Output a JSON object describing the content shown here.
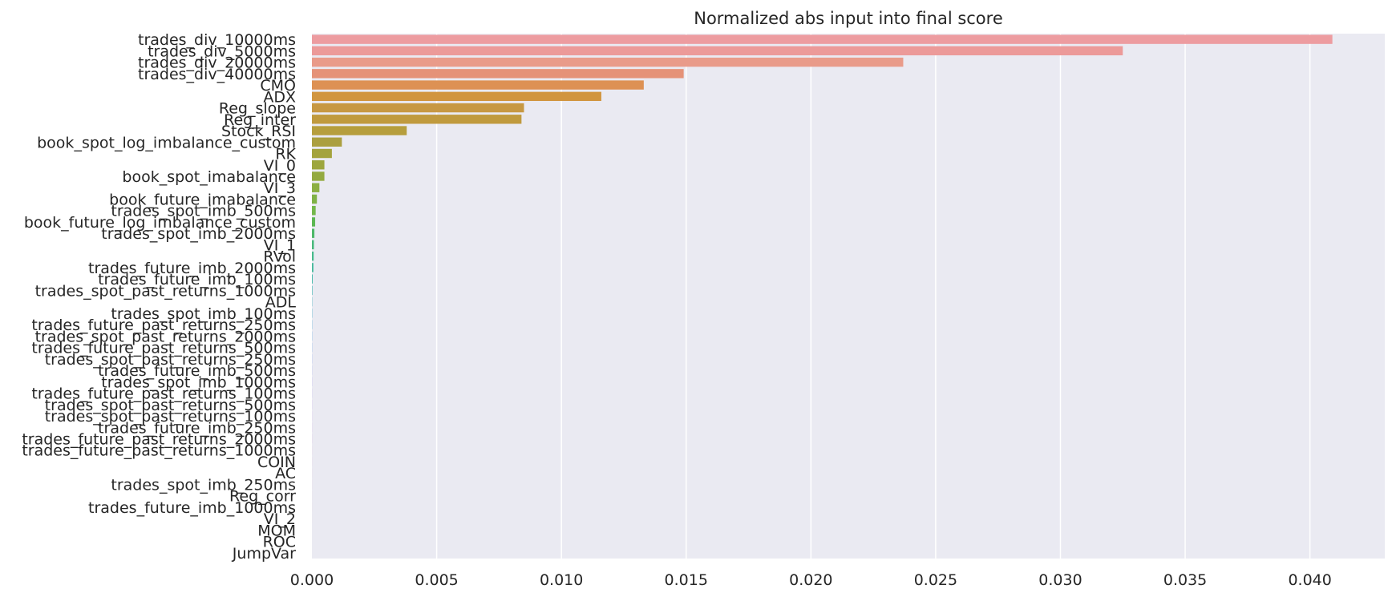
{
  "chart_data": {
    "type": "bar",
    "orientation": "horizontal",
    "title": "Normalized abs input into final score",
    "xlabel": "",
    "ylabel": "",
    "xlim": [
      0,
      0.043
    ],
    "xticks": [
      "0.000",
      "0.005",
      "0.010",
      "0.015",
      "0.020",
      "0.025",
      "0.030",
      "0.035",
      "0.040"
    ],
    "grid": true,
    "legend": "none",
    "categories": [
      "trades_div_10000ms",
      "trades_div_5000ms",
      "trades_div_20000ms",
      "trades_div_40000ms",
      "CMO",
      "ADX",
      "Reg_slope",
      "Reg_inter",
      "Stock_RSI",
      "book_spot_log_imbalance_custom",
      "RK",
      "VI_0",
      "book_spot_imabalance",
      "VI_3",
      "book_future_imabalance",
      "trades_spot_imb_500ms",
      "book_future_log_imbalance_custom",
      "trades_spot_imb_2000ms",
      "VI_1",
      "RVol",
      "trades_future_imb_2000ms",
      "trades_future_imb_100ms",
      "trades_spot_past_returns_1000ms",
      "ADL",
      "trades_spot_imb_100ms",
      "trades_future_past_returns_250ms",
      "trades_spot_past_returns_2000ms",
      "trades_future_past_returns_500ms",
      "trades_spot_past_returns_250ms",
      "trades_future_imb_500ms",
      "trades_spot_imb_1000ms",
      "trades_future_past_returns_100ms",
      "trades_spot_past_returns_500ms",
      "trades_spot_past_returns_100ms",
      "trades_future_imb_250ms",
      "trades_future_past_returns_2000ms",
      "trades_future_past_returns_1000ms",
      "COIN",
      "AC",
      "trades_spot_imb_250ms",
      "Reg_corr",
      "trades_future_imb_1000ms",
      "VI_2",
      "MOM",
      "ROC",
      "JumpVar"
    ],
    "values": [
      0.0409,
      0.0325,
      0.0237,
      0.0149,
      0.0133,
      0.0116,
      0.0085,
      0.0084,
      0.0038,
      0.0012,
      0.0008,
      0.0005,
      0.0005,
      0.0003,
      0.0002,
      0.00015,
      0.00013,
      0.0001,
      8e-05,
      7e-05,
      6e-05,
      3e-05,
      2e-05,
      1e-05,
      1e-05,
      8e-06,
      7e-06,
      6e-06,
      5e-06,
      4e-06,
      4e-06,
      3e-06,
      3e-06,
      2e-06,
      2e-06,
      2e-06,
      1e-06,
      1e-06,
      1e-06,
      1e-06,
      5e-07,
      5e-07,
      3e-07,
      2e-07,
      1e-07,
      1e-07
    ],
    "colors": [
      "#ed9ca0",
      "#ec9a99",
      "#e99b8a",
      "#e59278",
      "#dd9154",
      "#d1953f",
      "#c79843",
      "#c09a3e",
      "#b69e3d",
      "#ab9f3f",
      "#a4a33d",
      "#9da63e",
      "#94aa40",
      "#8caf42",
      "#80b246",
      "#74b84b",
      "#5cb853",
      "#4fb96a",
      "#49b97c",
      "#47ba8c",
      "#46b99c",
      "#45b9a9",
      "#45b7b4",
      "#45b5c0",
      "#46b2ca",
      "#4aaed6",
      "#55a9e0",
      "#64a3e8",
      "#789cee",
      "#8a96f2",
      "#9a8ff4",
      "#a988f2",
      "#b782ee",
      "#c37de8",
      "#cd7be0",
      "#d67ad7",
      "#dd7bcd",
      "#e27dc1",
      "#e680b4",
      "#e983a8",
      "#eb879e",
      "#ec8a96",
      "#ed8e90",
      "#ed918e",
      "#ed948d",
      "#ed978c"
    ]
  }
}
